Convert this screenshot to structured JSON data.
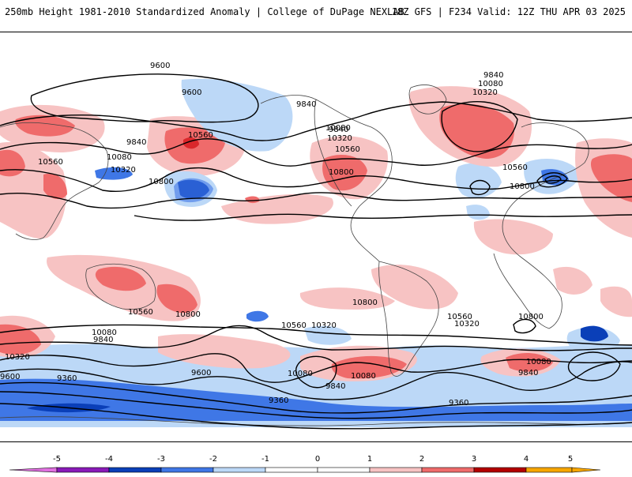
{
  "header": {
    "title": "250mb Height 1981-2010 Standardized Anomaly | College of DuPage NEXLAB",
    "run": "18Z GFS | F234 Valid: 12Z THU APR 03 2025"
  },
  "colors": {
    "neg5": "#e070e0",
    "neg4": "#8a1ab8",
    "neg3": "#0a3fb8",
    "neg2": "#3f77e6",
    "neg1": "#bcd8f7",
    "zero": "#ffffff",
    "pos1": "#f7c3c3",
    "pos2": "#ef6b6b",
    "pos3": "#d9272b",
    "pos4": "#b30000",
    "pos5": "#f7a600"
  },
  "colorbar": {
    "ticks": [
      "-5",
      "-4",
      "-3",
      "-2",
      "-1",
      "0",
      "1",
      "2",
      "3",
      "4",
      "5"
    ]
  },
  "contour_labels": [
    {
      "text": "9600"
    },
    {
      "text": "9600"
    },
    {
      "text": "9840"
    },
    {
      "text": "10560"
    },
    {
      "text": "9840"
    },
    {
      "text": "10080"
    },
    {
      "text": "10560"
    },
    {
      "text": "10320"
    },
    {
      "text": "10800"
    },
    {
      "text": "9840"
    },
    {
      "text": "10080"
    },
    {
      "text": "10320"
    },
    {
      "text": "10560"
    },
    {
      "text": "10800"
    },
    {
      "text": "9840"
    },
    {
      "text": "10080"
    },
    {
      "text": "10320"
    },
    {
      "text": "10560"
    },
    {
      "text": "10800"
    },
    {
      "text": "10800"
    },
    {
      "text": "10560"
    },
    {
      "text": "10800"
    },
    {
      "text": "10080"
    },
    {
      "text": "9840"
    },
    {
      "text": "10320"
    },
    {
      "text": "10560"
    },
    {
      "text": "10320"
    },
    {
      "text": "10560"
    },
    {
      "text": "10320"
    },
    {
      "text": "10800"
    },
    {
      "text": "9600"
    },
    {
      "text": "9360"
    },
    {
      "text": "10080"
    },
    {
      "text": "9840"
    },
    {
      "text": "10080"
    },
    {
      "text": "9600"
    },
    {
      "text": "10080"
    },
    {
      "text": "9840"
    },
    {
      "text": "9360"
    },
    {
      "text": "9360"
    }
  ]
}
